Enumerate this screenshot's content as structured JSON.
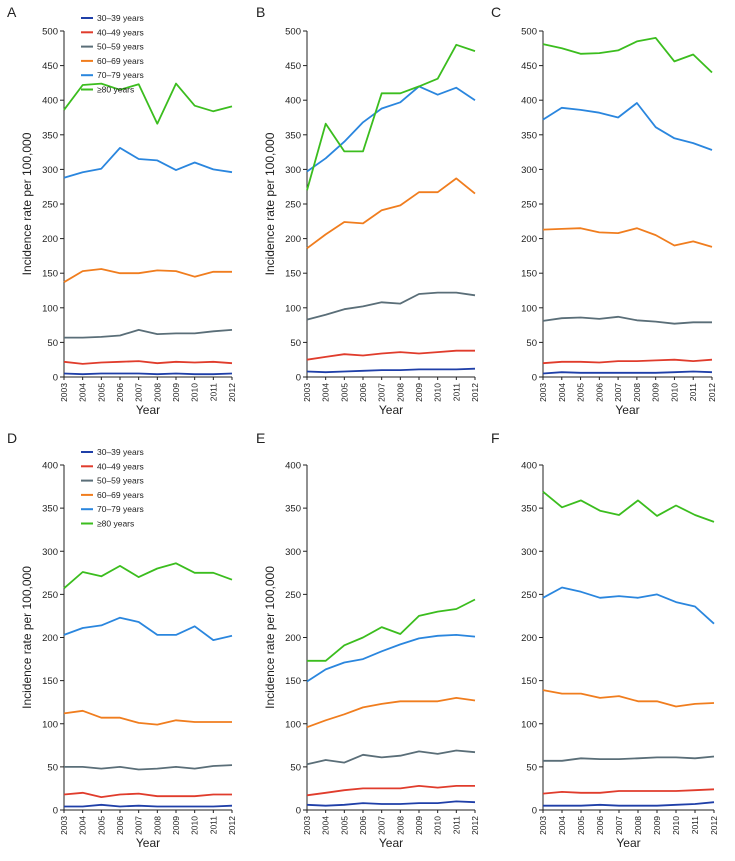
{
  "figure": {
    "legend_entries": [
      "30–39 years",
      "40–49 years",
      "50–59 years",
      "60–69 years",
      "70–79 years",
      "≥80 years"
    ],
    "colors": [
      "#1f3fa8",
      "#e03c2c",
      "#5a6e78",
      "#f07d1e",
      "#2a86de",
      "#3bbd1e"
    ]
  },
  "chart_data": [
    {
      "type": "line",
      "panel": "A",
      "categories": [
        "2003",
        "2004",
        "2005",
        "2006",
        "2007",
        "2008",
        "2009",
        "2010",
        "2011",
        "2012"
      ],
      "xlabel": "Year",
      "ylabel": "Incidence rate per 100,000",
      "ylim": [
        0,
        500
      ],
      "yticks": [
        0,
        50,
        100,
        150,
        200,
        250,
        300,
        350,
        400,
        450,
        500
      ],
      "legend": true,
      "series": [
        {
          "name": "30–39 years",
          "values": [
            5,
            4,
            5,
            5,
            5,
            4,
            5,
            4,
            4,
            5
          ]
        },
        {
          "name": "40–49 years",
          "values": [
            22,
            19,
            21,
            22,
            23,
            20,
            22,
            21,
            22,
            20
          ]
        },
        {
          "name": "50–59 years",
          "values": [
            57,
            57,
            58,
            60,
            68,
            62,
            63,
            63,
            66,
            68
          ]
        },
        {
          "name": "60–69 years",
          "values": [
            137,
            153,
            156,
            150,
            150,
            154,
            153,
            145,
            152,
            152
          ]
        },
        {
          "name": "70–79 years",
          "values": [
            288,
            296,
            301,
            331,
            315,
            313,
            299,
            310,
            300,
            296
          ]
        },
        {
          "name": "≥80 years",
          "values": [
            386,
            422,
            424,
            415,
            423,
            366,
            424,
            392,
            384,
            391
          ]
        }
      ]
    },
    {
      "type": "line",
      "panel": "B",
      "categories": [
        "2003",
        "2004",
        "2005",
        "2006",
        "2007",
        "2008",
        "2009",
        "2010",
        "2011",
        "2012"
      ],
      "xlabel": "Year",
      "ylabel": "Incidence rate per 100,000",
      "ylim": [
        0,
        500
      ],
      "yticks": [
        0,
        50,
        100,
        150,
        200,
        250,
        300,
        350,
        400,
        450,
        500
      ],
      "legend": false,
      "series": [
        {
          "name": "30–39 years",
          "values": [
            8,
            7,
            8,
            9,
            10,
            10,
            11,
            11,
            11,
            12
          ]
        },
        {
          "name": "40–49 years",
          "values": [
            25,
            29,
            33,
            31,
            34,
            36,
            34,
            36,
            38,
            38
          ]
        },
        {
          "name": "50–59 years",
          "values": [
            83,
            90,
            98,
            102,
            108,
            106,
            120,
            122,
            122,
            118
          ]
        },
        {
          "name": "60–69 years",
          "values": [
            186,
            206,
            224,
            222,
            241,
            248,
            267,
            267,
            287,
            265
          ]
        },
        {
          "name": "70–79 years",
          "values": [
            297,
            316,
            340,
            368,
            388,
            397,
            420,
            408,
            418,
            400
          ]
        },
        {
          "name": "≥80 years",
          "values": [
            270,
            366,
            326,
            326,
            410,
            410,
            420,
            431,
            480,
            471
          ]
        }
      ]
    },
    {
      "type": "line",
      "panel": "C",
      "categories": [
        "2003",
        "2004",
        "2005",
        "2006",
        "2007",
        "2008",
        "2009",
        "2010",
        "2011",
        "2012"
      ],
      "xlabel": "Year",
      "ylabel": "",
      "ylim": [
        0,
        500
      ],
      "yticks": [
        0,
        50,
        100,
        150,
        200,
        250,
        300,
        350,
        400,
        450,
        500
      ],
      "legend": false,
      "series": [
        {
          "name": "30–39 years",
          "values": [
            5,
            7,
            6,
            6,
            6,
            6,
            6,
            7,
            8,
            7
          ]
        },
        {
          "name": "40–49 years",
          "values": [
            20,
            22,
            22,
            21,
            23,
            23,
            24,
            25,
            23,
            25
          ]
        },
        {
          "name": "50–59 years",
          "values": [
            81,
            85,
            86,
            84,
            87,
            82,
            80,
            77,
            79,
            79
          ]
        },
        {
          "name": "60–69 years",
          "values": [
            213,
            214,
            215,
            209,
            208,
            215,
            205,
            190,
            196,
            188
          ]
        },
        {
          "name": "70–79 years",
          "values": [
            372,
            389,
            386,
            382,
            375,
            396,
            361,
            345,
            338,
            328
          ]
        },
        {
          "name": "≥80 years",
          "values": [
            481,
            475,
            467,
            468,
            472,
            485,
            490,
            456,
            466,
            440
          ]
        }
      ]
    },
    {
      "type": "line",
      "panel": "D",
      "categories": [
        "2003",
        "2004",
        "2005",
        "2006",
        "2007",
        "2008",
        "2009",
        "2010",
        "2011",
        "2012"
      ],
      "xlabel": "Year",
      "ylabel": "Incidence rate per 100,000",
      "ylim": [
        0,
        400
      ],
      "yticks": [
        0,
        50,
        100,
        150,
        200,
        250,
        300,
        350,
        400
      ],
      "legend": true,
      "series": [
        {
          "name": "30–39 years",
          "values": [
            4,
            4,
            6,
            4,
            5,
            4,
            4,
            4,
            4,
            5
          ]
        },
        {
          "name": "40–49 years",
          "values": [
            18,
            20,
            15,
            18,
            19,
            16,
            16,
            16,
            18,
            18
          ]
        },
        {
          "name": "50–59 years",
          "values": [
            50,
            50,
            48,
            50,
            47,
            48,
            50,
            48,
            51,
            52
          ]
        },
        {
          "name": "60–69 years",
          "values": [
            112,
            115,
            107,
            107,
            101,
            99,
            104,
            102,
            102,
            102
          ]
        },
        {
          "name": "70–79 years",
          "values": [
            203,
            211,
            214,
            223,
            218,
            203,
            203,
            213,
            197,
            202
          ]
        },
        {
          "name": "≥80 years",
          "values": [
            257,
            276,
            271,
            283,
            270,
            280,
            286,
            275,
            275,
            267
          ]
        }
      ]
    },
    {
      "type": "line",
      "panel": "E",
      "categories": [
        "2003",
        "2004",
        "2005",
        "2006",
        "2007",
        "2008",
        "2009",
        "2010",
        "2011",
        "2012"
      ],
      "xlabel": "Year",
      "ylabel": "Incidence rate per 100,000",
      "ylim": [
        0,
        400
      ],
      "yticks": [
        0,
        50,
        100,
        150,
        200,
        250,
        300,
        350,
        400
      ],
      "legend": false,
      "series": [
        {
          "name": "30–39 years",
          "values": [
            6,
            5,
            6,
            8,
            7,
            7,
            8,
            8,
            10,
            9
          ]
        },
        {
          "name": "40–49 years",
          "values": [
            17,
            20,
            23,
            25,
            25,
            25,
            28,
            26,
            28,
            28
          ]
        },
        {
          "name": "50–59 years",
          "values": [
            53,
            58,
            55,
            64,
            61,
            63,
            68,
            65,
            69,
            67
          ]
        },
        {
          "name": "60–69 years",
          "values": [
            96,
            104,
            111,
            119,
            123,
            126,
            126,
            126,
            130,
            127
          ]
        },
        {
          "name": "70–79 years",
          "values": [
            149,
            163,
            171,
            175,
            184,
            192,
            199,
            202,
            203,
            201
          ]
        },
        {
          "name": "≥80 years",
          "values": [
            173,
            173,
            191,
            200,
            212,
            204,
            225,
            230,
            233,
            244
          ]
        }
      ]
    },
    {
      "type": "line",
      "panel": "F",
      "categories": [
        "2003",
        "2004",
        "2005",
        "2006",
        "2007",
        "2008",
        "2009",
        "2010",
        "2011",
        "2012"
      ],
      "xlabel": "Year",
      "ylabel": "",
      "ylim": [
        0,
        400
      ],
      "yticks": [
        0,
        50,
        100,
        150,
        200,
        250,
        300,
        350,
        400
      ],
      "legend": false,
      "series": [
        {
          "name": "30–39 years",
          "values": [
            5,
            5,
            5,
            6,
            5,
            5,
            5,
            6,
            7,
            9
          ]
        },
        {
          "name": "40–49 years",
          "values": [
            19,
            21,
            20,
            20,
            22,
            22,
            22,
            22,
            23,
            24
          ]
        },
        {
          "name": "50–59 years",
          "values": [
            57,
            57,
            60,
            59,
            59,
            60,
            61,
            61,
            60,
            62
          ]
        },
        {
          "name": "60–69 years",
          "values": [
            139,
            135,
            135,
            130,
            132,
            126,
            126,
            120,
            123,
            124
          ]
        },
        {
          "name": "70–79 years",
          "values": [
            246,
            258,
            253,
            246,
            248,
            246,
            250,
            241,
            236,
            216
          ]
        },
        {
          "name": "≥80 years",
          "values": [
            369,
            351,
            359,
            347,
            342,
            359,
            341,
            353,
            342,
            334
          ]
        }
      ]
    }
  ]
}
